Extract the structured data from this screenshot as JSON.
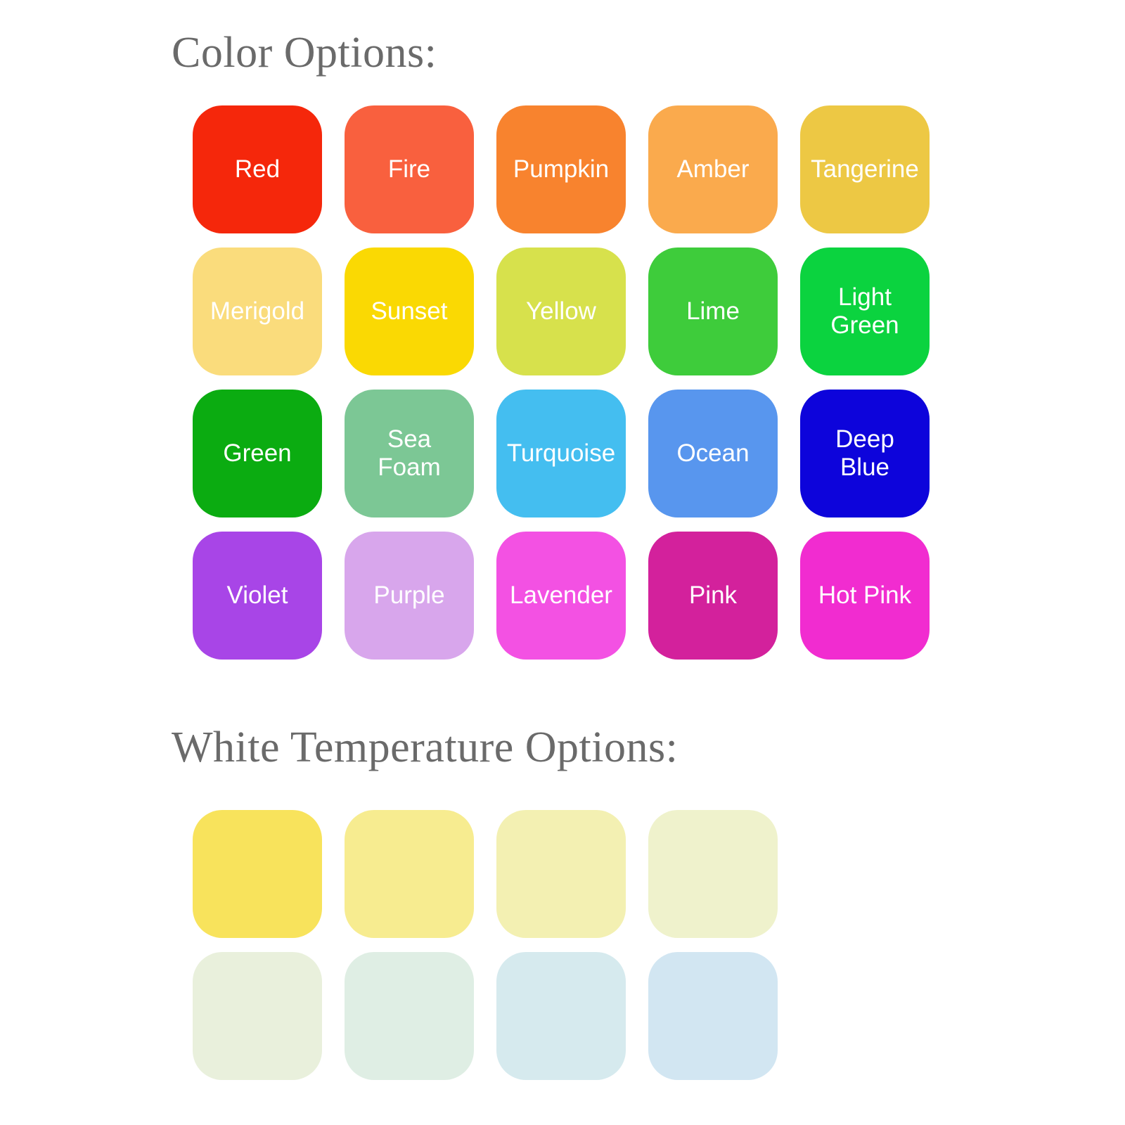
{
  "colors": {
    "heading": "Color Options:",
    "swatches": [
      {
        "label": "Red",
        "color": "#F5270B"
      },
      {
        "label": "Fire",
        "color": "#F9603E"
      },
      {
        "label": "Pumpkin",
        "color": "#F8832E"
      },
      {
        "label": "Amber",
        "color": "#FAAA4D"
      },
      {
        "label": "Tangerine",
        "color": "#EDC844"
      },
      {
        "label": "Merigold",
        "color": "#FADC7C"
      },
      {
        "label": "Sunset",
        "color": "#FAD903"
      },
      {
        "label": "Yellow",
        "color": "#D7E14C"
      },
      {
        "label": "Lime",
        "color": "#3ECC3B"
      },
      {
        "label": "Light\nGreen",
        "color": "#0BD33F"
      },
      {
        "label": "Green",
        "color": "#0BAC11"
      },
      {
        "label": "Sea\nFoam",
        "color": "#7CC795"
      },
      {
        "label": "Turquoise",
        "color": "#44BEF0"
      },
      {
        "label": "Ocean",
        "color": "#5896EE"
      },
      {
        "label": "Deep\nBlue",
        "color": "#0D04DB"
      },
      {
        "label": "Violet",
        "color": "#A845E7"
      },
      {
        "label": "Purple",
        "color": "#D8A6EC"
      },
      {
        "label": "Lavender",
        "color": "#F351E3"
      },
      {
        "label": "Pink",
        "color": "#D3219C"
      },
      {
        "label": "Hot Pink",
        "color": "#F12CD0"
      }
    ]
  },
  "white_temps": {
    "heading": "White Temperature Options:",
    "swatches": [
      {
        "label": "",
        "color": "#F8E35C"
      },
      {
        "label": "",
        "color": "#F7EC90"
      },
      {
        "label": "",
        "color": "#F3F0B2"
      },
      {
        "label": "",
        "color": "#EFF2CC"
      },
      {
        "label": "",
        "color": "#E9F0DC"
      },
      {
        "label": "",
        "color": "#DFEEE4"
      },
      {
        "label": "",
        "color": "#D6EAEE"
      },
      {
        "label": "",
        "color": "#D2E6F2"
      }
    ]
  },
  "theme": {
    "background": "#FFFFFF",
    "heading_color": "#6A6A6A",
    "label_color": "#FFFFFF"
  }
}
